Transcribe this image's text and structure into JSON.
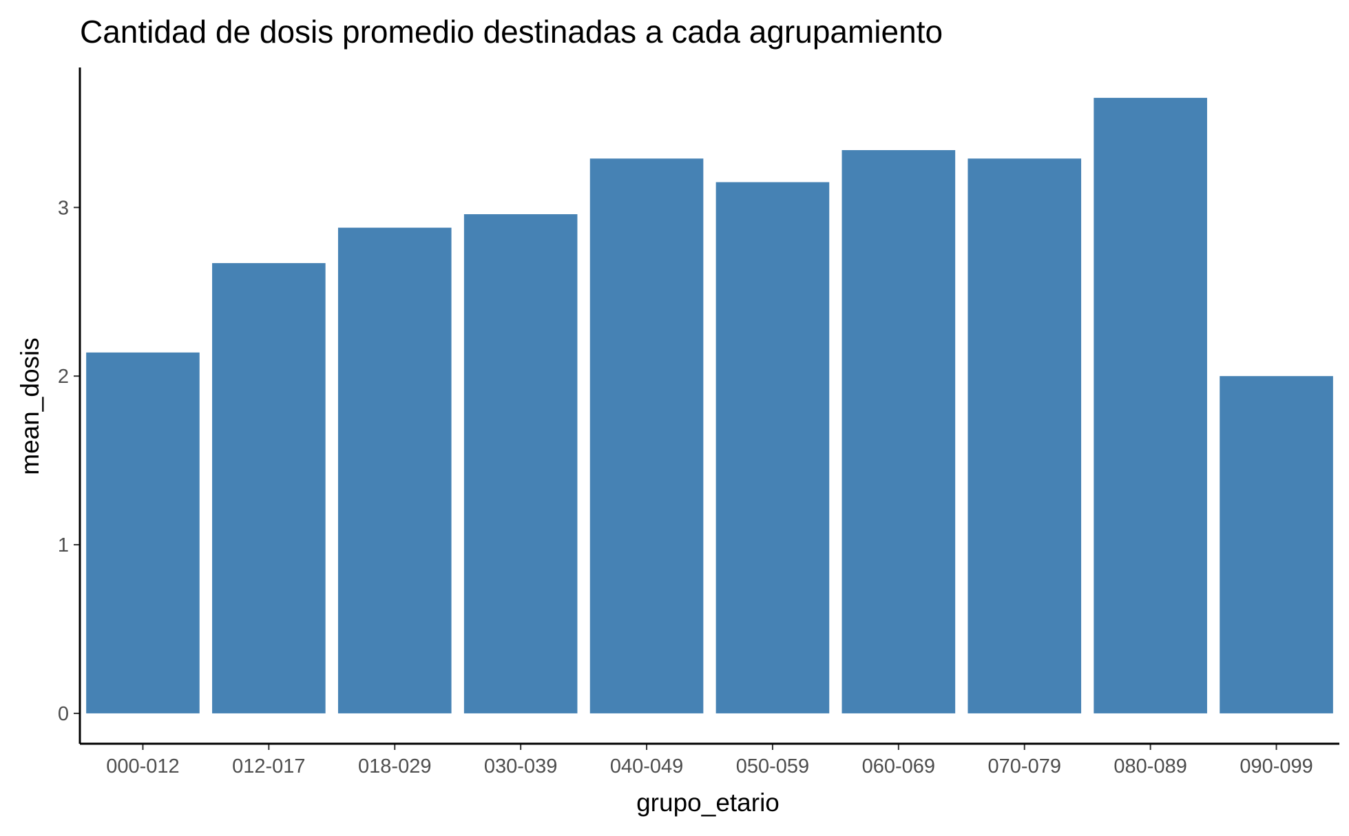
{
  "chart_data": {
    "type": "bar",
    "title": "Cantidad de dosis promedio destinadas a cada agrupamiento",
    "xlabel": "grupo_etario",
    "ylabel": "mean_dosis",
    "categories": [
      "000-012",
      "012-017",
      "018-029",
      "030-039",
      "040-049",
      "050-059",
      "060-069",
      "070-079",
      "080-089",
      "090-099"
    ],
    "values": [
      2.14,
      2.67,
      2.88,
      2.96,
      3.29,
      3.15,
      3.34,
      3.29,
      3.65,
      2.0
    ],
    "yticks": [
      "0",
      "1",
      "2",
      "3"
    ],
    "ylim": [
      -0.18,
      3.83
    ],
    "grid": false,
    "legend": "none",
    "colors": {
      "bar": "#4682B4",
      "axis": "#000000",
      "tick_label": "#4D4D4D",
      "text": "#000000"
    }
  }
}
